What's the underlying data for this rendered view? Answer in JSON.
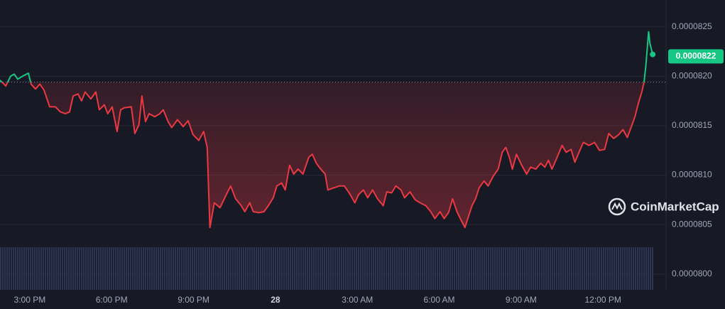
{
  "chart_data": {
    "type": "line",
    "x": [
      13.91,
      14.12,
      14.3,
      14.43,
      14.56,
      14.74,
      14.95,
      15.05,
      15.21,
      15.37,
      15.52,
      15.73,
      15.94,
      16.12,
      16.3,
      16.46,
      16.59,
      16.77,
      16.9,
      17.03,
      17.24,
      17.42,
      17.55,
      17.73,
      17.86,
      18.02,
      18.2,
      18.33,
      18.46,
      18.72,
      18.85,
      19.0,
      19.11,
      19.24,
      19.37,
      19.58,
      19.76,
      19.89,
      20.07,
      20.2,
      20.41,
      20.62,
      20.8,
      20.98,
      21.19,
      21.37,
      21.5,
      21.6,
      21.76,
      21.97,
      22.18,
      22.36,
      22.54,
      22.75,
      22.88,
      23.06,
      23.19,
      23.4,
      23.58,
      23.74,
      23.92,
      24.05,
      24.23,
      24.36,
      24.52,
      24.67,
      24.83,
      25.01,
      25.22,
      25.35,
      25.5,
      25.66,
      25.82,
      25.92,
      26.13,
      26.34,
      26.52,
      26.7,
      26.91,
      27.04,
      27.22,
      27.38,
      27.56,
      27.74,
      27.95,
      28.08,
      28.26,
      28.41,
      28.6,
      28.73,
      28.93,
      29.12,
      29.3,
      29.51,
      29.69,
      29.84,
      30.03,
      30.18,
      30.34,
      30.49,
      30.65,
      30.81,
      30.94,
      31.07,
      31.2,
      31.33,
      31.46,
      31.64,
      31.79,
      31.98,
      32.16,
      32.31,
      32.44,
      32.57,
      32.68,
      32.83,
      33.02,
      33.2,
      33.35,
      33.54,
      33.72,
      33.87,
      34.0,
      34.13,
      34.32,
      34.5,
      34.65,
      34.83,
      34.97,
      35.12,
      35.28,
      35.49,
      35.69,
      35.87,
      36.06,
      36.21,
      36.39,
      36.58,
      36.73,
      36.89,
      37.04,
      37.17,
      37.3,
      37.43,
      37.51,
      37.57,
      37.62,
      37.67,
      37.72,
      37.82
    ],
    "values": [
      8.196e-05,
      8.19e-05,
      8.2e-05,
      8.202e-05,
      8.197e-05,
      8.2e-05,
      8.203e-05,
      8.192e-05,
      8.187e-05,
      8.192e-05,
      8.186e-05,
      8.169e-05,
      8.169e-05,
      8.164e-05,
      8.162e-05,
      8.164e-05,
      8.18e-05,
      8.182e-05,
      8.175e-05,
      8.184e-05,
      8.177e-05,
      8.184e-05,
      8.166e-05,
      8.171e-05,
      8.162e-05,
      8.169e-05,
      8.144e-05,
      8.166e-05,
      8.168e-05,
      8.169e-05,
      8.142e-05,
      8.151e-05,
      8.18e-05,
      8.154e-05,
      8.162e-05,
      8.159e-05,
      8.162e-05,
      8.166e-05,
      8.154e-05,
      8.148e-05,
      8.156e-05,
      8.149e-05,
      8.155e-05,
      8.141e-05,
      8.135e-05,
      8.144e-05,
      8.128e-05,
      8.047e-05,
      8.072e-05,
      8.067e-05,
      8.079e-05,
      8.089e-05,
      8.076e-05,
      8.069e-05,
      8.063e-05,
      8.072e-05,
      8.063e-05,
      8.062e-05,
      8.063e-05,
      8.069e-05,
      8.077e-05,
      8.089e-05,
      8.092e-05,
      8.085e-05,
      8.11e-05,
      8.101e-05,
      8.106e-05,
      8.101e-05,
      8.118e-05,
      8.121e-05,
      8.112e-05,
      8.106e-05,
      8.101e-05,
      8.085e-05,
      8.087e-05,
      8.089e-05,
      8.089e-05,
      8.082e-05,
      8.072e-05,
      8.08e-05,
      8.085e-05,
      8.077e-05,
      8.085e-05,
      8.076e-05,
      8.069e-05,
      8.083e-05,
      8.082e-05,
      8.089e-05,
      8.085e-05,
      8.077e-05,
      8.083e-05,
      8.075e-05,
      8.072e-05,
      8.069e-05,
      8.063e-05,
      8.056e-05,
      8.063e-05,
      8.056e-05,
      8.062e-05,
      8.076e-05,
      8.063e-05,
      8.054e-05,
      8.047e-05,
      8.058e-05,
      8.069e-05,
      8.076e-05,
      8.087e-05,
      8.094e-05,
      8.089e-05,
      8.099e-05,
      8.106e-05,
      8.123e-05,
      8.128e-05,
      8.118e-05,
      8.106e-05,
      8.121e-05,
      8.11e-05,
      8.101e-05,
      8.108e-05,
      8.106e-05,
      8.112e-05,
      8.108e-05,
      8.115e-05,
      8.106e-05,
      8.118e-05,
      8.13e-05,
      8.123e-05,
      8.126e-05,
      8.113e-05,
      8.123e-05,
      8.133e-05,
      8.13e-05,
      8.133e-05,
      8.125e-05,
      8.126e-05,
      8.142e-05,
      8.137e-05,
      8.141e-05,
      8.146e-05,
      8.138e-05,
      8.149e-05,
      8.159e-05,
      8.173e-05,
      8.185e-05,
      8.195e-05,
      8.211e-05,
      8.228e-05,
      8.245e-05,
      8.233e-05,
      8.222e-05
    ],
    "reference": 8.194e-05,
    "current_price": 8.22e-05,
    "color_up": "#16c784",
    "color_down": "#ea3943",
    "xlim": [
      13.91,
      38.31
    ],
    "xticks": [
      {
        "value": 15,
        "label": "3:00 PM"
      },
      {
        "value": 18,
        "label": "6:00 PM"
      },
      {
        "value": 21,
        "label": "9:00 PM"
      },
      {
        "value": 24,
        "label": "28"
      },
      {
        "value": 27,
        "label": "3:00 AM"
      },
      {
        "value": 30,
        "label": "6:00 AM"
      },
      {
        "value": 33,
        "label": "9:00 AM"
      },
      {
        "value": 36,
        "label": "12:00 PM"
      }
    ],
    "ylim": [
      7.984e-05,
      8.277e-05
    ],
    "yticks": [
      {
        "value": 8e-05,
        "label": "0.0000800"
      },
      8.05e-05,
      {
        "value": 8.1e-05,
        "label": "0.0000810"
      },
      8.15e-05,
      {
        "value": 8.2e-05,
        "label": "0.0000820"
      },
      8.25e-05
    ],
    "grid": true,
    "watermark": "CoinMarketCap"
  }
}
